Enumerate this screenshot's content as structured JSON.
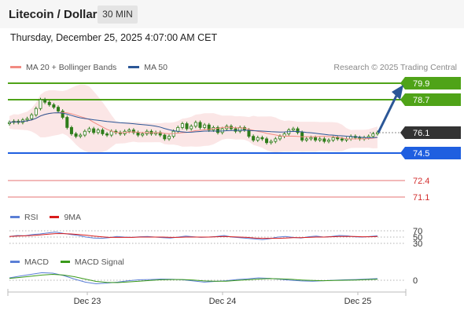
{
  "header": {
    "title": "Litecoin / Dollar",
    "timeframe": "30 MIN"
  },
  "datetime": "Thursday, December 25, 2025 4:07:00 AM CET",
  "credit": "Research © 2025 Trading Central",
  "legends": {
    "price": [
      {
        "label": "MA 20 + Bollinger Bands",
        "color": "#f28b82"
      },
      {
        "label": "MA 50",
        "color": "#2b5797"
      }
    ],
    "rsi": [
      {
        "label": "RSI",
        "color": "#5b7fd6"
      },
      {
        "label": "9MA",
        "color": "#d91c1c"
      }
    ],
    "macd": [
      {
        "label": "MACD",
        "color": "#5b7fd6"
      },
      {
        "label": "MACD Signal",
        "color": "#3a9a1a"
      }
    ]
  },
  "colors": {
    "resistance": "#4fa318",
    "support": "#1f5fe0",
    "last": "#333333",
    "candle": "#2e7d1a",
    "pivot_line": "#e57373",
    "bollinger": "#fbe3e3",
    "arrow": "#2b5797"
  },
  "chart_data": [
    {
      "type": "candlestick",
      "panel": "price",
      "title": "Litecoin / Dollar",
      "categories": [
        "Dec 23",
        "Dec 24",
        "Dec 25"
      ],
      "ylim": [
        70.5,
        80.5
      ],
      "close": [
        76.9,
        77.0,
        76.9,
        77.1,
        77.2,
        77.5,
        78.0,
        78.7,
        78.5,
        78.3,
        78.1,
        77.8,
        77.3,
        76.5,
        76.0,
        75.8,
        75.9,
        76.2,
        76.4,
        76.1,
        76.3,
        76.0,
        75.9,
        76.2,
        76.1,
        76.0,
        76.2,
        76.3,
        76.1,
        75.9,
        76.0,
        76.2,
        76.0,
        76.1,
        75.9,
        75.6,
        75.8,
        76.2,
        76.5,
        76.8,
        76.4,
        76.6,
        76.9,
        76.5,
        76.7,
        76.3,
        76.5,
        76.1,
        76.4,
        76.6,
        76.4,
        76.2,
        76.5,
        76.3,
        75.8,
        75.5,
        75.7,
        75.6,
        75.3,
        75.4,
        75.6,
        75.8,
        76.0,
        76.3,
        76.4,
        76.1,
        75.5,
        75.6,
        75.7,
        75.5,
        75.6,
        75.4,
        75.5,
        75.7,
        75.6,
        75.5,
        75.6,
        75.8,
        75.7,
        75.6,
        75.7,
        75.8,
        76.0,
        76.1
      ],
      "indicators": {
        "ma20_bollinger": true,
        "ma50": true
      },
      "levels": [
        {
          "label": "79.9",
          "kind": "resistance"
        },
        {
          "label": "78.7",
          "kind": "resistance"
        },
        {
          "label": "76.1",
          "kind": "last"
        },
        {
          "label": "74.5",
          "kind": "support"
        },
        {
          "label": "72.4",
          "kind": "pivot"
        },
        {
          "label": "71.1",
          "kind": "pivot"
        }
      ],
      "forecast_arrow": {
        "from": 76.1,
        "to": 79.9
      }
    },
    {
      "type": "line",
      "panel": "rsi",
      "levels": [
        {
          "label": "70",
          "value": 70
        },
        {
          "label": "50",
          "value": 50
        },
        {
          "label": "30",
          "value": 30
        }
      ],
      "series": [
        {
          "name": "RSI",
          "values": [
            52,
            55,
            54,
            58,
            60,
            63,
            66,
            62,
            58,
            55,
            50,
            47,
            46,
            48,
            52,
            50,
            49,
            51,
            52,
            50,
            48,
            47,
            50,
            53,
            51,
            49,
            50,
            52,
            55,
            50,
            48,
            46,
            44,
            42,
            45,
            50,
            52,
            49,
            47,
            51,
            53,
            50,
            52,
            55,
            54,
            51,
            50,
            52,
            54
          ]
        },
        {
          "name": "9MA",
          "values": [
            52,
            53,
            54,
            55,
            57,
            59,
            61,
            61,
            60,
            58,
            56,
            53,
            51,
            49,
            49,
            49,
            49,
            50,
            50,
            50,
            50,
            49,
            49,
            50,
            50,
            50,
            50,
            51,
            52,
            51,
            50,
            49,
            47,
            46,
            46,
            46,
            47,
            48,
            48,
            49,
            50,
            50,
            51,
            52,
            52,
            52,
            51,
            51,
            52
          ]
        }
      ]
    },
    {
      "type": "line",
      "panel": "macd",
      "levels": [
        {
          "label": "0",
          "value": 0
        }
      ],
      "series": [
        {
          "name": "MACD",
          "values": [
            0.1,
            0.18,
            0.25,
            0.32,
            0.3,
            0.2,
            0.05,
            -0.08,
            -0.15,
            -0.12,
            -0.08,
            -0.02,
            0.02,
            0.03,
            0.05,
            0.04,
            0.02,
            -0.03,
            -0.08,
            -0.05,
            -0.02,
            0.03,
            0.06,
            0.1,
            0.08,
            0.04,
            0.0,
            -0.03,
            -0.04,
            -0.02,
            0.0,
            0.02,
            0.03,
            0.05,
            0.07
          ]
        },
        {
          "name": "MACD Signal",
          "values": [
            0.08,
            0.12,
            0.17,
            0.22,
            0.25,
            0.22,
            0.15,
            0.05,
            -0.05,
            -0.09,
            -0.1,
            -0.07,
            -0.04,
            -0.01,
            0.02,
            0.03,
            0.03,
            0.01,
            -0.03,
            -0.04,
            -0.04,
            -0.01,
            0.02,
            0.05,
            0.07,
            0.06,
            0.04,
            0.01,
            -0.01,
            -0.02,
            -0.01,
            0.0,
            0.01,
            0.03,
            0.04
          ]
        }
      ]
    }
  ]
}
